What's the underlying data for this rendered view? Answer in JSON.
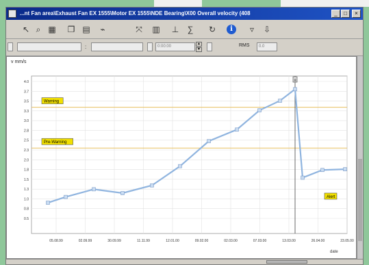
{
  "window": {
    "title": "...nt Fan area\\Exhaust Fan EX 1555\\Motor EX 1555\\NDE Bearing\\X00 Overall velocity (408"
  },
  "toolbar": {
    "icons": [
      "select-icon",
      "zoom-icon",
      "grid-icon",
      "copy-icon",
      "table-icon",
      "plot-icon",
      "cursor-icon",
      "band-icon",
      "level-icon",
      "stats-icon",
      "refresh-icon",
      "info-icon",
      "filter-icon",
      "export-icon"
    ]
  },
  "filter": {
    "date_from": "",
    "date_to": "",
    "time_value": "0:00:00",
    "rms_label": "RMS",
    "rms_value": "0.0"
  },
  "chart_data": {
    "type": "line",
    "ylabel": "v mm/s",
    "xlabel": "date",
    "ylim": [
      0,
      3.95
    ],
    "yticks": [
      "4.0",
      "3.7",
      "3.5",
      "3.3",
      "3.0",
      "2.8",
      "2.5",
      "2.3",
      "2.0",
      "1.8",
      "1.5",
      "1.3",
      "1.0",
      "0.8",
      "0.5"
    ],
    "xticks": [
      "05.08.99",
      "02.09.99",
      "30.09.99",
      "11.11.99",
      "12.01.00",
      "09.02.00",
      "02.03.00",
      "07.03.00",
      "13.03.00",
      "26.04.00",
      "23.05.00"
    ],
    "thresholds": [
      {
        "label": "Warning",
        "value": 3.28,
        "color": "#e8c060"
      },
      {
        "label": "Pre-Warning",
        "value": 2.22,
        "color": "#e8c060"
      }
    ],
    "series": [
      {
        "values": [
          0.8,
          0.95,
          1.15,
          1.05,
          1.25,
          1.75,
          2.4,
          2.7,
          3.2,
          3.45,
          3.75,
          1.45,
          1.65,
          1.67
        ],
        "color": "#8fb4df"
      }
    ],
    "alarm_tag": "Alert",
    "cursor_label": "≡",
    "grid": true
  }
}
